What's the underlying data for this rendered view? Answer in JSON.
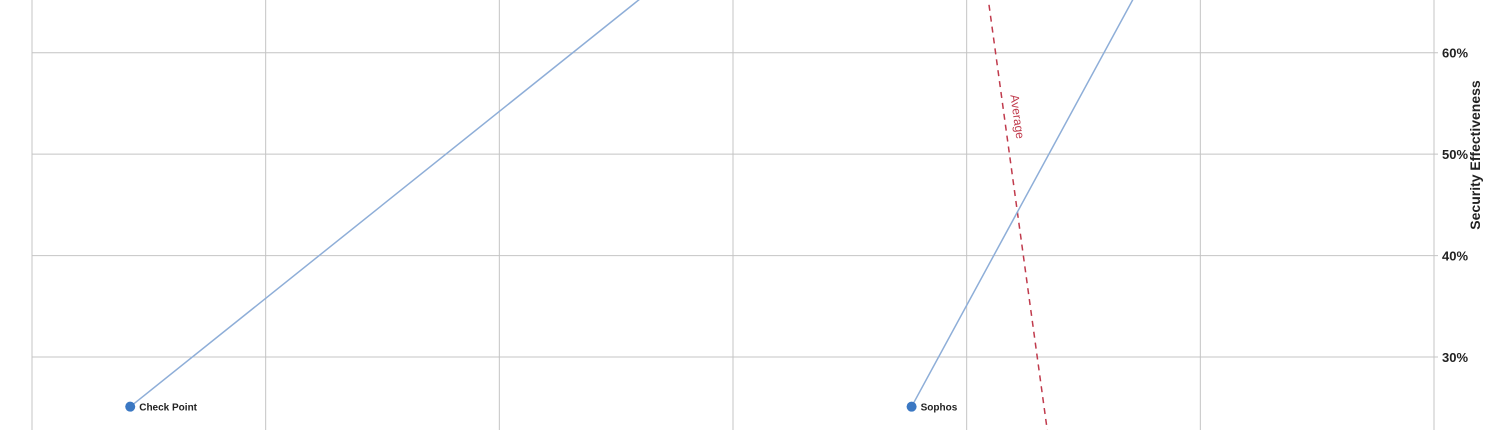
{
  "chart_data": {
    "type": "scatter",
    "ylabel": "Security Effectiveness",
    "y_axis_position": "right",
    "y_ticks": [
      "30%",
      "40%",
      "50%",
      "60%"
    ],
    "y_tick_values": [
      30,
      40,
      50,
      60
    ],
    "ylim": [
      22.8,
      65.2
    ],
    "grid": true,
    "vertical_grid_lines": 6,
    "series": [
      {
        "label": "Check Point",
        "x": 0.3,
        "y": 25.1,
        "color": "#3b78c3",
        "line_to": {
          "x": 2.6,
          "y": 65.6
        }
      },
      {
        "label": "Sophos",
        "x": 3.8,
        "y": 25.1,
        "color": "#3b78c3",
        "line_to": {
          "x": 4.8,
          "y": 65.6
        }
      }
    ],
    "average_line": {
      "label": "Average",
      "color": "#c03a4c",
      "style": "dashed",
      "from": {
        "x": 4.14,
        "y": 65.8
      },
      "to": {
        "x": 4.41,
        "y": 22.4
      }
    },
    "xlim": [
      -0.14,
      6.14
    ]
  }
}
